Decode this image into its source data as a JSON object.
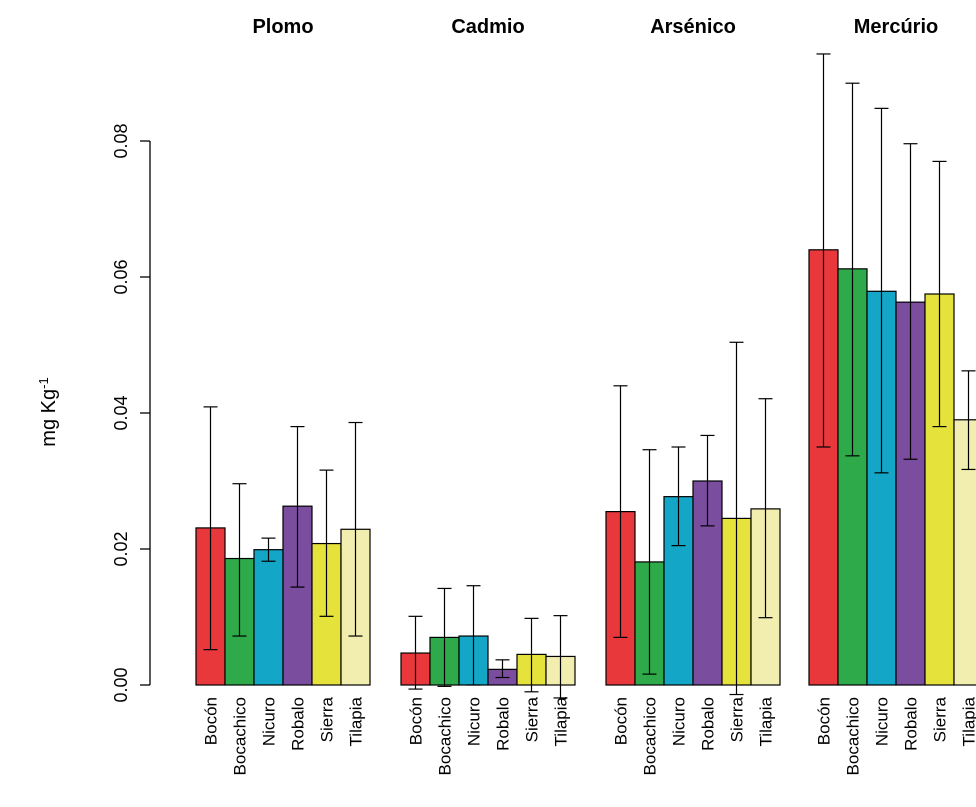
{
  "chart_data": {
    "type": "bar",
    "ylabel": "mg Kg",
    "ylabel_superscript": "-1",
    "ylim": [
      0,
      0.09
    ],
    "yticks": [
      "0.00",
      "0.02",
      "0.04",
      "0.06",
      "0.08"
    ],
    "ytick_values": [
      0,
      0.02,
      0.04,
      0.06,
      0.08
    ],
    "categories": [
      "Bocón",
      "Bocachico",
      "Nicuro",
      "Robalo",
      "Sierra",
      "Tilapia"
    ],
    "colors": [
      "#e8383b",
      "#2eaa4a",
      "#14a6c6",
      "#7a4d9e",
      "#e6e23c",
      "#f2eeb0"
    ],
    "panels": [
      {
        "title": "Plomo",
        "values": [
          0.0231,
          0.0186,
          0.0199,
          0.0263,
          0.0208,
          0.0229
        ],
        "err_low": [
          0.0052,
          0.0072,
          0.0182,
          0.0144,
          0.0101,
          0.0072
        ],
        "err_high": [
          0.0409,
          0.0296,
          0.0216,
          0.038,
          0.0316,
          0.0386
        ]
      },
      {
        "title": "Cadmio",
        "values": [
          0.0047,
          0.007,
          0.0072,
          0.0023,
          0.0045,
          0.0042
        ],
        "err_low": [
          -0.0006,
          -0.0002,
          0.0,
          0.0011,
          -0.001,
          -0.0019
        ],
        "err_high": [
          0.0101,
          0.0142,
          0.0146,
          0.0037,
          0.0098,
          0.0102
        ]
      },
      {
        "title": "Arsénico",
        "values": [
          0.0255,
          0.0181,
          0.0277,
          0.03,
          0.0245,
          0.0259
        ],
        "err_low": [
          0.007,
          0.0016,
          0.0205,
          0.0234,
          -0.0014,
          0.0099
        ],
        "err_high": [
          0.044,
          0.0346,
          0.035,
          0.0367,
          0.0504,
          0.0421
        ]
      },
      {
        "title": "Mercúrio",
        "values": [
          0.064,
          0.0612,
          0.0579,
          0.0563,
          0.0575,
          0.039
        ],
        "err_low": [
          0.035,
          0.0337,
          0.0312,
          0.0332,
          0.038,
          0.0317
        ],
        "err_high": [
          0.0928,
          0.0885,
          0.0848,
          0.0796,
          0.077,
          0.0462
        ]
      }
    ]
  }
}
